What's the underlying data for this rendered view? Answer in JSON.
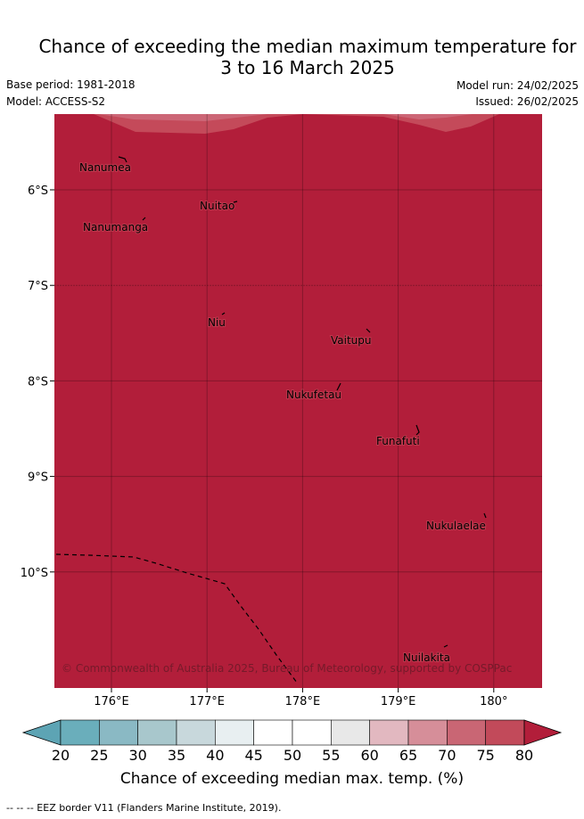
{
  "title": {
    "line1": "Chance of exceeding the median maximum temperature for",
    "line2": "3 to 16 March 2025"
  },
  "meta": {
    "base_period": "Base period: 1981-2018",
    "model": "Model: ACCESS-S2",
    "model_run": "Model run: 24/02/2025",
    "issued": "Issued: 26/02/2025"
  },
  "map": {
    "fill_color": "#b21e3a",
    "band_color": "#c44a5a",
    "band_light_color": "#cc6676",
    "lon_range": [
      175.4,
      180.5
    ],
    "lat_range": [
      -12.0,
      -5.0
    ],
    "lon_ticks": [
      "176°E",
      "177°E",
      "178°E",
      "179°E",
      "180°"
    ],
    "lat_ticks": [
      "6°S",
      "7°S",
      "8°S",
      "9°S",
      "10°S"
    ],
    "places": [
      {
        "name": "Nanumea"
      },
      {
        "name": "Nuitao"
      },
      {
        "name": "Nanumanga"
      },
      {
        "name": "Niu"
      },
      {
        "name": "Vaitupu"
      },
      {
        "name": "Nukufetau"
      },
      {
        "name": "Funafuti"
      },
      {
        "name": "Nukulaelae"
      },
      {
        "name": "Nuilakita"
      }
    ],
    "credit": "© Commonwealth of Australia 2025, Bureau of Meteorology, supported by COSPPac"
  },
  "colorbar": {
    "ticks": [
      "20",
      "25",
      "30",
      "35",
      "40",
      "45",
      "50",
      "55",
      "60",
      "65",
      "70",
      "75",
      "80"
    ],
    "low_extend_color": "#5da4b4",
    "high_extend_color": "#b21e3a",
    "colors": [
      "#6aaebb",
      "#8ab9c4",
      "#a8c7cc",
      "#c8d8dc",
      "#e8eff1",
      "#ffffff",
      "#ffffff",
      "#e8e8e8",
      "#e2b8c0",
      "#d68e99",
      "#c96674",
      "#c24a5a"
    ],
    "label": "Chance of exceeding median max. temp. (%)"
  },
  "legend": {
    "eez": "--  --  -- EEZ border V11 (Flanders Marine Institute, 2019)."
  }
}
